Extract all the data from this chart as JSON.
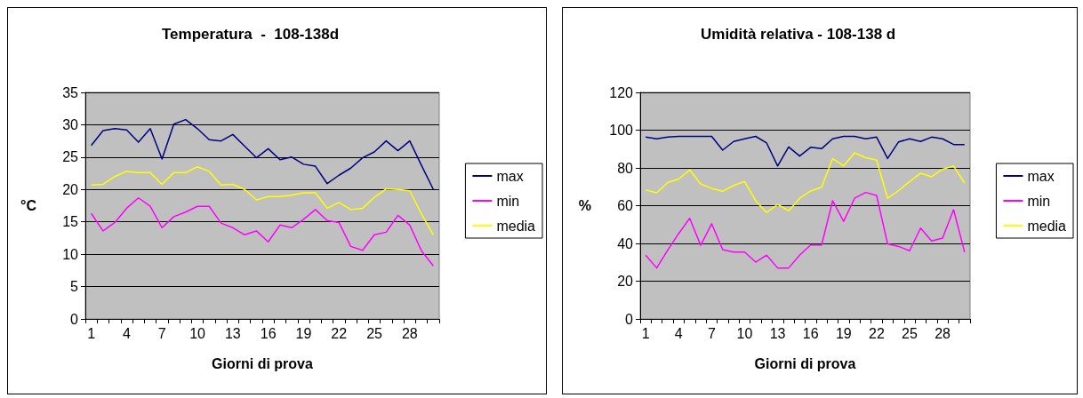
{
  "chart_data": [
    {
      "type": "line",
      "title": "Temperatura  -  108-138d",
      "xlabel": "Giorni di prova",
      "ylabel": "°C",
      "categories": [
        "1",
        null,
        null,
        "4",
        null,
        null,
        "7",
        null,
        null,
        "10",
        null,
        null,
        "13",
        null,
        null,
        "16",
        null,
        null,
        "19",
        null,
        null,
        "22",
        null,
        null,
        "25",
        null,
        null,
        "28",
        null,
        null
      ],
      "series": [
        {
          "name": "max",
          "color": "#000080",
          "values": [
            26.8,
            29.1,
            29.4,
            29.2,
            27.3,
            29.4,
            24.7,
            30.1,
            30.8,
            29.4,
            27.7,
            27.5,
            28.5,
            26.7,
            24.9,
            26.3,
            24.6,
            25.0,
            23.9,
            23.6,
            20.9,
            22.2,
            23.3,
            24.9,
            25.8,
            27.5,
            26.0,
            27.5,
            23.7,
            20.0
          ]
        },
        {
          "name": "min",
          "color": "#ff00ff",
          "values": [
            16.3,
            13.6,
            14.9,
            17.1,
            18.7,
            17.4,
            14.1,
            15.8,
            16.5,
            17.4,
            17.4,
            14.8,
            14.1,
            13.0,
            13.6,
            11.9,
            14.5,
            14.1,
            15.4,
            16.9,
            15.2,
            14.9,
            11.2,
            10.6,
            13.0,
            13.4,
            16.0,
            14.5,
            10.5,
            8.2
          ]
        },
        {
          "name": "media",
          "color": "#ffff00",
          "values": [
            20.7,
            20.8,
            22.0,
            22.8,
            22.6,
            22.6,
            20.8,
            22.6,
            22.6,
            23.5,
            22.8,
            20.7,
            20.8,
            20.0,
            18.4,
            18.9,
            18.9,
            19.1,
            19.5,
            19.5,
            17.1,
            18.0,
            16.9,
            17.1,
            18.8,
            20.1,
            20.0,
            19.8,
            16.2,
            13.0
          ]
        }
      ],
      "ylim": [
        0,
        35
      ],
      "yticks": [
        0,
        5,
        10,
        15,
        20,
        25,
        30,
        35
      ],
      "grid": "y",
      "legend": "right",
      "marker": "none",
      "line_style": "solid"
    },
    {
      "type": "line",
      "title": "Umidità relativa - 108-138 d",
      "xlabel": "Giorni di prova",
      "ylabel": "%",
      "categories": [
        "1",
        null,
        null,
        "4",
        null,
        null,
        "7",
        null,
        null,
        "10",
        null,
        null,
        "13",
        null,
        null,
        "16",
        null,
        null,
        "19",
        null,
        null,
        "22",
        null,
        null,
        "25",
        null,
        null,
        "28",
        null,
        null
      ],
      "series": [
        {
          "name": "max",
          "color": "#000080",
          "values": [
            96.3,
            95.4,
            96.3,
            96.7,
            96.7,
            96.7,
            96.7,
            89.4,
            94.0,
            95.4,
            96.7,
            93.2,
            81.0,
            91.1,
            86.3,
            90.9,
            90.2,
            95.4,
            96.7,
            96.7,
            95.4,
            96.3,
            85.0,
            93.8,
            95.4,
            94.0,
            96.3,
            95.4,
            92.4,
            92.4
          ]
        },
        {
          "name": "min",
          "color": "#ff00ff",
          "values": [
            33.8,
            27.0,
            36.4,
            45.2,
            53.3,
            39.0,
            50.4,
            36.7,
            35.4,
            35.4,
            30.1,
            33.8,
            27.0,
            27.0,
            33.8,
            39.2,
            39.2,
            62.6,
            51.7,
            63.9,
            67.0,
            65.4,
            39.8,
            38.4,
            36.1,
            48.1,
            41.3,
            42.8,
            57.9,
            35.4
          ]
        },
        {
          "name": "media",
          "color": "#ffff00",
          "values": [
            68.3,
            66.8,
            72.2,
            74.1,
            78.9,
            71.5,
            69.1,
            67.6,
            70.7,
            72.8,
            62.6,
            56.4,
            60.7,
            57.2,
            63.9,
            67.8,
            69.8,
            84.9,
            81.1,
            88.0,
            85.4,
            84.2,
            63.9,
            68.0,
            72.8,
            77.2,
            75.3,
            79.3,
            81.0,
            72.0
          ]
        }
      ],
      "ylim": [
        0,
        120
      ],
      "yticks": [
        0,
        20,
        40,
        60,
        80,
        100,
        120
      ],
      "grid": "y",
      "legend": "right",
      "marker": "none",
      "line_style": "solid"
    }
  ]
}
